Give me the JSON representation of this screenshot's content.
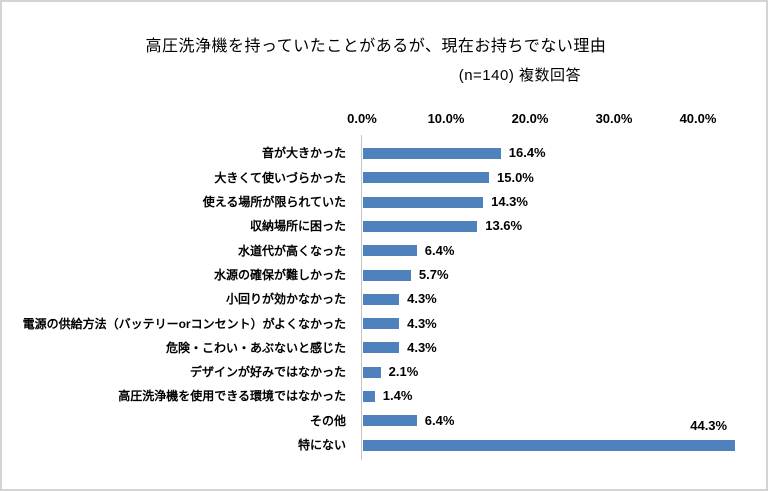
{
  "chart_data": {
    "type": "bar",
    "orientation": "horizontal",
    "title": "高圧洗浄機を持っていたことがあるが、現在お持ちでない理由",
    "subtitle": "(n=140) 複数回答",
    "categories": [
      "音が大きかった",
      "大きくて使いづらかった",
      "使える場所が限られていた",
      "収納場所に困った",
      "水道代が高くなった",
      "水源の確保が難しかった",
      "小回りが効かなかった",
      "電源の供給方法（バッテリーorコンセント）がよくなかった",
      "危険・こわい・あぶないと感じた",
      "デザインが好みではなかった",
      "高圧洗浄機を使用できる環境ではなかった",
      "その他",
      "特にない"
    ],
    "values": [
      16.4,
      15.0,
      14.3,
      13.6,
      6.4,
      5.7,
      4.3,
      4.3,
      4.3,
      2.1,
      1.4,
      6.4,
      44.3
    ],
    "value_labels": [
      "16.4%",
      "15.0%",
      "14.3%",
      "13.6%",
      "6.4%",
      "5.7%",
      "4.3%",
      "4.3%",
      "4.3%",
      "2.1%",
      "1.4%",
      "6.4%",
      "44.3%"
    ],
    "x_tick_labels": [
      "0.0%",
      "10.0%",
      "20.0%",
      "30.0%",
      "40.0%"
    ],
    "x_tick_values": [
      0,
      10,
      20,
      30,
      40
    ],
    "xlim": [
      0,
      45
    ],
    "xlabel": "",
    "ylabel": "",
    "grid": "off",
    "legend": "none",
    "bar_color": "#4F81BD",
    "axis_line_color": "#C6C6C6",
    "text_color": "#000000",
    "frame_border_color": "#D5D3D3"
  }
}
